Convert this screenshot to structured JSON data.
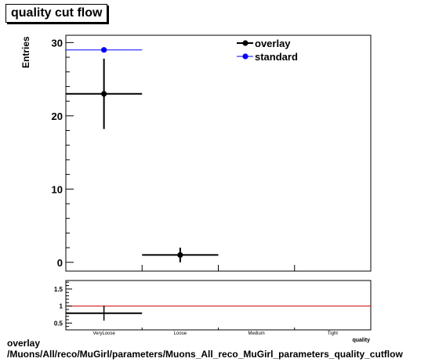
{
  "title": "quality cut flow",
  "footer": {
    "line1": "overlay",
    "line2": "/Muons/All/reco/MuGirl/parameters/Muons_All_reco_MuGirl_parameters_quality_cutflow"
  },
  "colors": {
    "overlay": "#000000",
    "standard": "#0000ff",
    "ratio_line": "#cc0000"
  },
  "chart_data": [
    {
      "type": "scatter",
      "title": "quality cut flow",
      "ylabel": "Entries",
      "categories": [
        "VeryLoose",
        "Loose",
        "Medium",
        "Tight"
      ],
      "ylim": [
        -1.2,
        31
      ],
      "yticks": [
        0,
        10,
        20,
        30
      ],
      "legend_position": "top-right",
      "series": [
        {
          "name": "overlay",
          "values": [
            23,
            1,
            0,
            0
          ],
          "errors": [
            4.8,
            1,
            0,
            0
          ],
          "color": "#000000"
        },
        {
          "name": "standard",
          "values": [
            29,
            0,
            0,
            0
          ],
          "errors": [
            0,
            0,
            0,
            0
          ],
          "color": "#0000ff"
        }
      ]
    },
    {
      "type": "scatter",
      "categories": [
        "VeryLoose",
        "Loose",
        "Medium",
        "Tight"
      ],
      "xlabel": "quality",
      "ylim": [
        0.3,
        1.75
      ],
      "yticks": [
        0.5,
        1,
        1.5
      ],
      "ytick_labels": [
        "0.5",
        "1",
        "1.5"
      ],
      "reference_line": 1,
      "series": [
        {
          "values": [
            0.79,
            null,
            null,
            null
          ],
          "errors": [
            0.22,
            0,
            0,
            0
          ],
          "color": "#000000"
        }
      ]
    }
  ]
}
